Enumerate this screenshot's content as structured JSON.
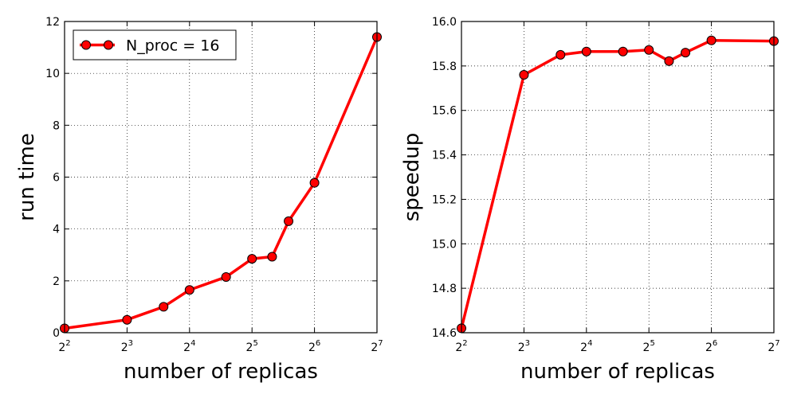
{
  "chart_data": [
    {
      "type": "line",
      "xlabel": "number of replicas",
      "ylabel": "run time",
      "x_scale": "log2",
      "xlim": [
        4,
        128
      ],
      "ylim": [
        0,
        12
      ],
      "x_ticks": [
        {
          "base": "2",
          "exp": "2",
          "value": 4
        },
        {
          "base": "2",
          "exp": "3",
          "value": 8
        },
        {
          "base": "2",
          "exp": "4",
          "value": 16
        },
        {
          "base": "2",
          "exp": "5",
          "value": 32
        },
        {
          "base": "2",
          "exp": "6",
          "value": 64
        },
        {
          "base": "2",
          "exp": "7",
          "value": 128
        }
      ],
      "y_ticks": [
        "0",
        "2",
        "4",
        "6",
        "8",
        "10",
        "12"
      ],
      "grid": true,
      "legend": "top-left",
      "series": [
        {
          "name": "N_proc = 16",
          "color": "#ff0000",
          "marker_color": "#ff0000",
          "x": [
            4,
            8,
            12,
            16,
            24,
            32,
            40,
            48,
            64,
            128
          ],
          "y": [
            0.17,
            0.5,
            1.0,
            1.65,
            2.15,
            2.85,
            2.93,
            4.3,
            5.78,
            11.4
          ]
        }
      ]
    },
    {
      "type": "line",
      "xlabel": "number of replicas",
      "ylabel": "speedup",
      "x_scale": "log2",
      "xlim": [
        4,
        128
      ],
      "ylim": [
        14.6,
        16.0
      ],
      "x_ticks": [
        {
          "base": "2",
          "exp": "2",
          "value": 4
        },
        {
          "base": "2",
          "exp": "3",
          "value": 8
        },
        {
          "base": "2",
          "exp": "4",
          "value": 16
        },
        {
          "base": "2",
          "exp": "5",
          "value": 32
        },
        {
          "base": "2",
          "exp": "6",
          "value": 64
        },
        {
          "base": "2",
          "exp": "7",
          "value": 128
        }
      ],
      "y_ticks": [
        "14.6",
        "14.8",
        "15.0",
        "15.2",
        "15.4",
        "15.6",
        "15.8",
        "16.0"
      ],
      "grid": true,
      "legend": "none",
      "series": [
        {
          "name": "",
          "color": "#ff0000",
          "marker_color": "#ff0000",
          "x": [
            4,
            8,
            12,
            16,
            24,
            32,
            40,
            48,
            64,
            128
          ],
          "y": [
            14.62,
            15.76,
            15.85,
            15.865,
            15.865,
            15.872,
            15.822,
            15.86,
            15.915,
            15.912
          ]
        }
      ]
    }
  ]
}
